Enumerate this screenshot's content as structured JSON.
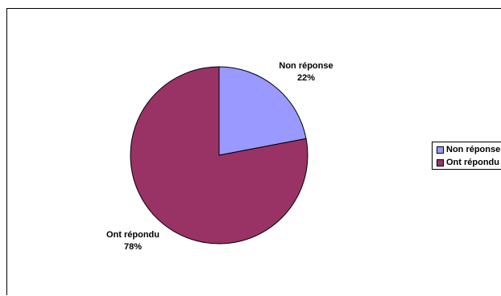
{
  "chart_data": {
    "type": "pie",
    "categories": [
      "Non réponse",
      "Ont répondu"
    ],
    "values": [
      22,
      78
    ],
    "colors": [
      "#9999ff",
      "#993366"
    ],
    "labels": [
      {
        "name": "Non réponse",
        "value": "22%"
      },
      {
        "name": "Ont répondu",
        "value": "78%"
      }
    ],
    "legend": {
      "position": "right",
      "items": [
        "Non réponse",
        "Ont répondu"
      ]
    }
  }
}
